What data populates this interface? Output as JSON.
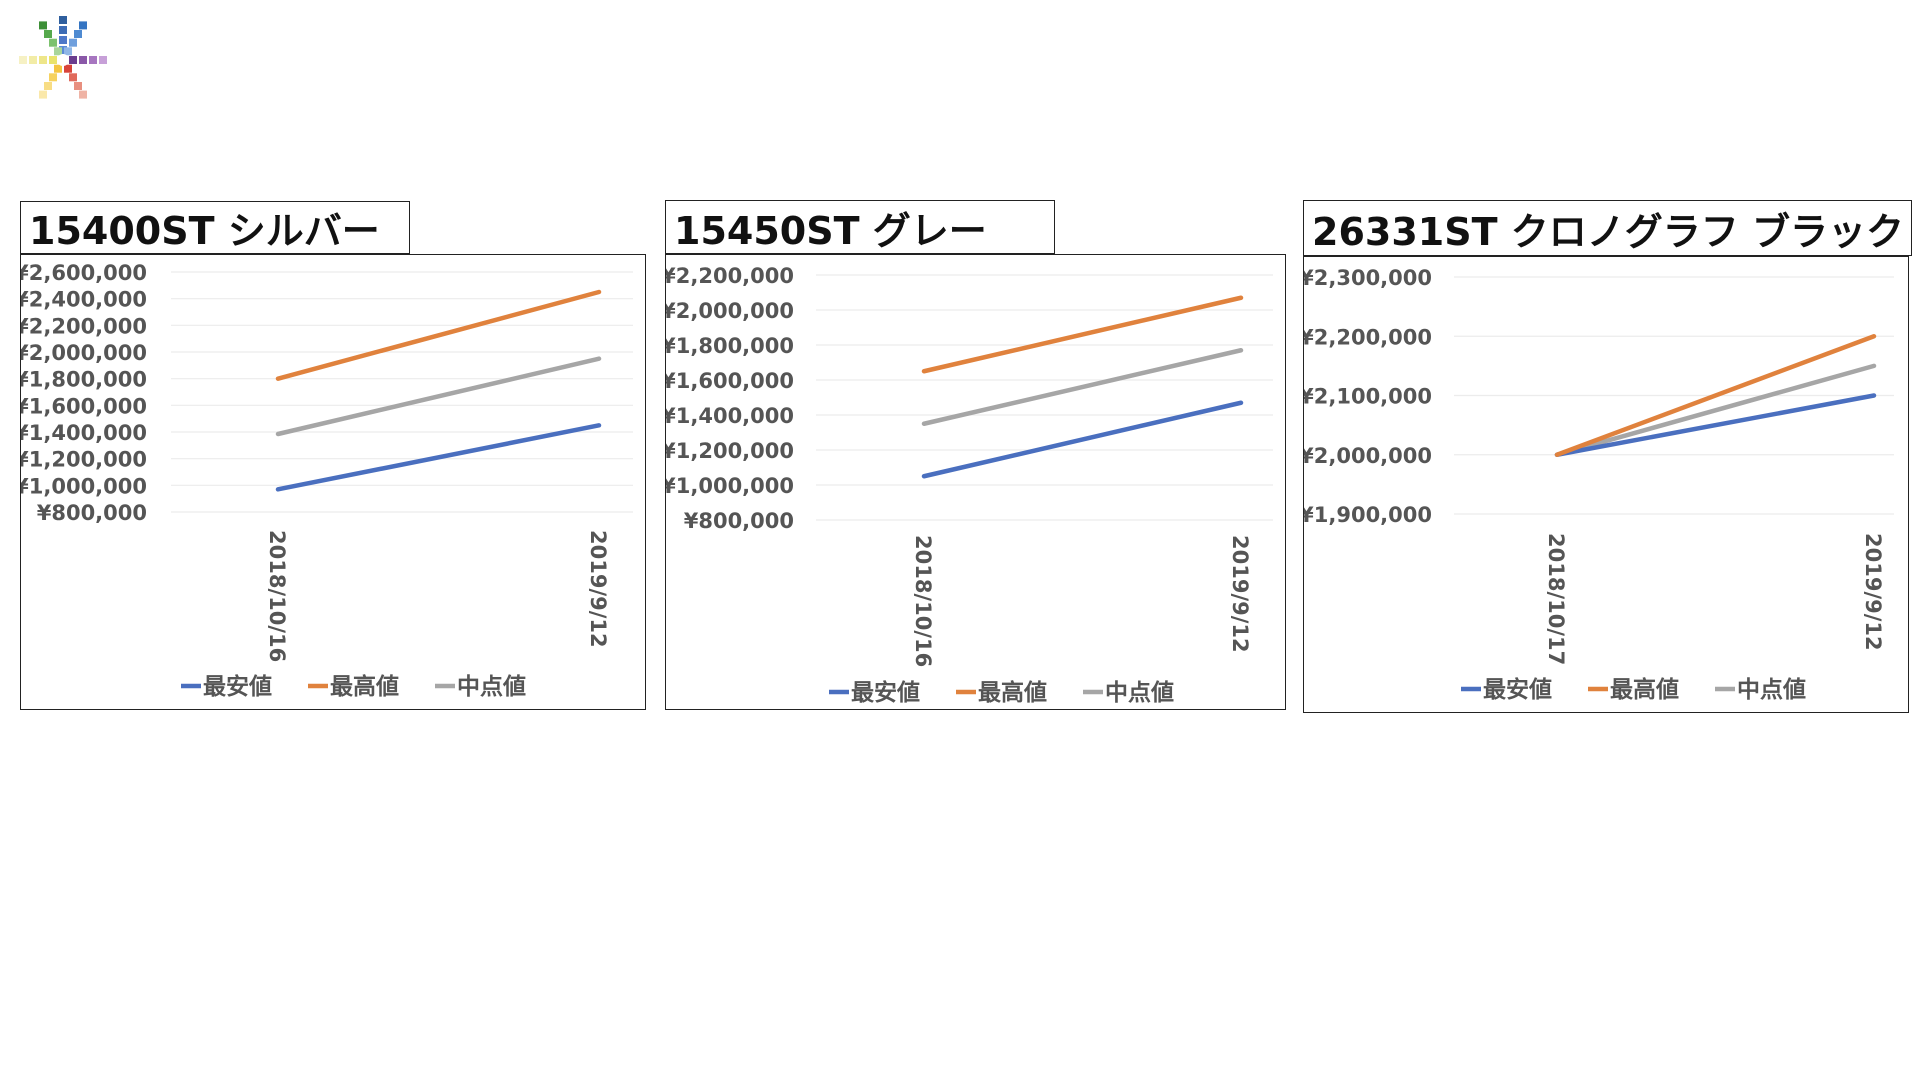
{
  "colors": {
    "low": "#4a6fbf",
    "high": "#e0823d",
    "mid": "#a6a6a6"
  },
  "legend": {
    "low": "最安値",
    "high": "最高値",
    "mid": "中点値"
  },
  "chart_data": [
    {
      "type": "line",
      "title": "15400ST シルバー",
      "x": [
        "2018/10/16",
        "2019/9/12"
      ],
      "ylim": [
        800000,
        2600000
      ],
      "yticks": [
        "¥2,600,000",
        "¥2,400,000",
        "¥2,200,000",
        "¥2,000,000",
        "¥1,800,000",
        "¥1,600,000",
        "¥1,400,000",
        "¥1,200,000",
        "¥1,000,000",
        "¥800,000"
      ],
      "legend_position": "bottom",
      "series": [
        {
          "name": "最安値",
          "values": [
            970000,
            1450000
          ]
        },
        {
          "name": "最高値",
          "values": [
            1800000,
            2450000
          ]
        },
        {
          "name": "中点値",
          "values": [
            1385000,
            1950000
          ]
        }
      ]
    },
    {
      "type": "line",
      "title": "15450ST グレー",
      "x": [
        "2018/10/16",
        "2019/9/12"
      ],
      "ylim": [
        800000,
        2200000
      ],
      "yticks": [
        "¥2,200,000",
        "¥2,000,000",
        "¥1,800,000",
        "¥1,600,000",
        "¥1,400,000",
        "¥1,200,000",
        "¥1,000,000",
        "¥800,000"
      ],
      "legend_position": "bottom",
      "series": [
        {
          "name": "最安値",
          "values": [
            1050000,
            1470000
          ]
        },
        {
          "name": "最高値",
          "values": [
            1650000,
            2070000
          ]
        },
        {
          "name": "中点値",
          "values": [
            1350000,
            1770000
          ]
        }
      ]
    },
    {
      "type": "line",
      "title": "26331ST クロノグラフ ブラック",
      "x": [
        "2018/10/17",
        "2019/9/12"
      ],
      "ylim": [
        1900000,
        2300000
      ],
      "yticks": [
        "¥2,300,000",
        "¥2,200,000",
        "¥2,100,000",
        "¥2,000,000",
        "¥1,900,000"
      ],
      "legend_position": "bottom",
      "series": [
        {
          "name": "最安値",
          "values": [
            2000000,
            2100000
          ]
        },
        {
          "name": "最高値",
          "values": [
            2000000,
            2200000
          ]
        },
        {
          "name": "中点値",
          "values": [
            2000000,
            2150000
          ]
        }
      ]
    }
  ]
}
